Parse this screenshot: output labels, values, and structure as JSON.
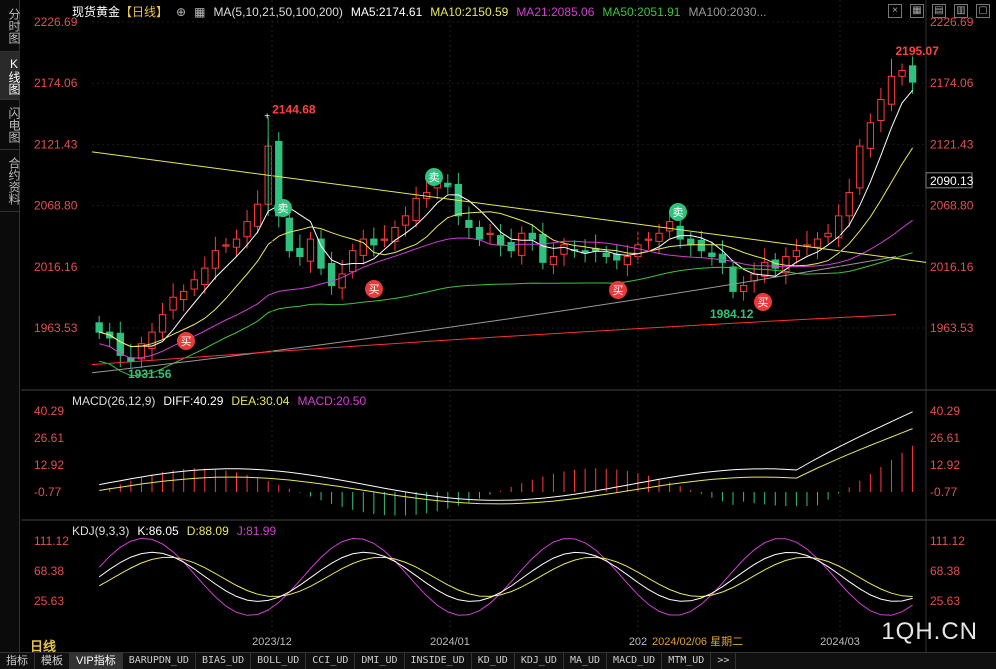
{
  "left_tabs": [
    "分时图",
    "K线图",
    "闪电图",
    "合约资料"
  ],
  "main_legend": {
    "symbol": "现货黄金",
    "period": "【日线】",
    "ma_params": "MA(5,10,21,50,100,200)",
    "ma5": "MA5:2174.61",
    "ma10": "MA10:2150.59",
    "ma21": "MA21:2085.06",
    "ma50": "MA50:2051.91",
    "ma100": "MA100:2030..."
  },
  "macd_legend": {
    "params": "MACD(26,12,9)",
    "diff": "DIFF:40.29",
    "dea": "DEA:30.04",
    "macd": "MACD:20.50"
  },
  "kdj_legend": {
    "params": "KDJ(9,3,3)",
    "k": "K:86.05",
    "d": "D:88.09",
    "j": "J:81.99"
  },
  "price_axis": [
    "2226.69",
    "2174.06",
    "2121.43",
    "2068.80",
    "2016.16",
    "1963.53"
  ],
  "current_price": "2090.13",
  "macd_axis": [
    "40.29",
    "26.61",
    "12.92",
    "-0.77"
  ],
  "kdj_axis": [
    "111.12",
    "68.38",
    "25.63"
  ],
  "annotations": {
    "high1": "2144.68",
    "high2": "2195.07",
    "low1": "1931.56",
    "low2": "1984.12"
  },
  "signals": {
    "buy": "买",
    "sell": "卖"
  },
  "x_labels": [
    "2023/12",
    "2024/01",
    "202",
    "2024/03"
  ],
  "date_tip": "2024/02/06 星期二",
  "period_label": "日线",
  "watermark": "1QH.CN",
  "bottom_tabs": [
    "指标",
    "模板",
    "VIP指标",
    "BARUPDN_UD",
    "BIAS_UD",
    "BOLL_UD",
    "CCI_UD",
    "DMI_UD",
    "INSIDE_UD",
    "KD_UD",
    "KDJ_UD",
    "MA_UD",
    "MACD_UD",
    "MTM_UD",
    ">>"
  ],
  "colors": {
    "up": "#ff3b3b",
    "down": "#2ec27e",
    "ma5": "#ffffff",
    "ma10": "#e8e85a",
    "ma21": "#d040d0",
    "ma50": "#3cc43c",
    "ma100": "#9a9a9a",
    "ma200": "#ff3030",
    "trend": "#e8e85a"
  }
}
